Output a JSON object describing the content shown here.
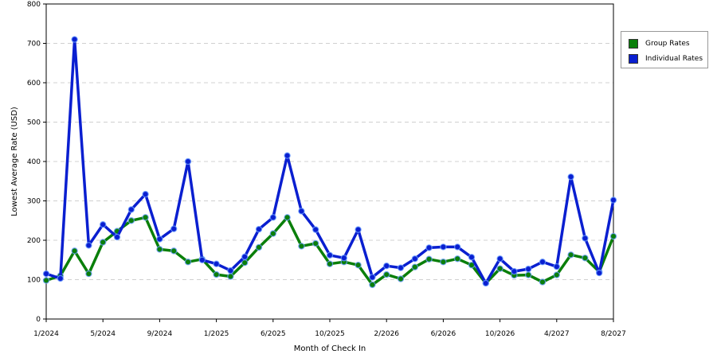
{
  "chart_data": {
    "type": "line",
    "title": "",
    "xlabel": "Month of Check In",
    "ylabel": "Lowest Average Rate (USD)",
    "ylim": [
      0,
      800
    ],
    "yticks": [
      0,
      100,
      200,
      300,
      400,
      500,
      600,
      700,
      800
    ],
    "xtick_labels": [
      "1/2024",
      "5/2024",
      "9/2024",
      "1/2025",
      "6/2025",
      "10/2025",
      "2/2026",
      "6/2026",
      "10/2026",
      "4/2027",
      "8/2027"
    ],
    "grid": "horizontal dashed",
    "legend_position": "right",
    "series": [
      {
        "name": "Group Rates",
        "color": "#0a7f0a",
        "values": [
          98,
          110,
          173,
          115,
          195,
          223,
          250,
          258,
          177,
          173,
          145,
          152,
          113,
          108,
          143,
          182,
          217,
          258,
          185,
          192,
          140,
          145,
          137,
          87,
          113,
          102,
          132,
          152,
          145,
          153,
          137,
          91,
          128,
          111,
          112,
          94,
          112,
          163,
          155,
          120,
          210
        ]
      },
      {
        "name": "Individual Rates",
        "color": "#0a1fd0",
        "values": [
          115,
          103,
          710,
          187,
          240,
          208,
          278,
          317,
          203,
          229,
          400,
          150,
          140,
          123,
          158,
          228,
          258,
          415,
          274,
          227,
          162,
          155,
          227,
          106,
          135,
          130,
          153,
          181,
          183,
          183,
          157,
          91,
          153,
          121,
          127,
          145,
          133,
          361,
          205,
          117,
          302
        ]
      }
    ]
  }
}
